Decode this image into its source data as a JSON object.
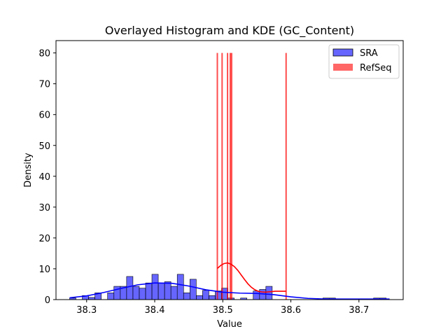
{
  "chart_data": {
    "type": "histogram",
    "title": "Overlayed Histogram and KDE (GC_Content)",
    "xlabel": "Value",
    "ylabel": "Density",
    "xlim": [
      38.255,
      38.765
    ],
    "ylim": [
      0,
      84
    ],
    "xticks": [
      38.3,
      38.4,
      38.5,
      38.6,
      38.7
    ],
    "yticks": [
      0,
      10,
      20,
      30,
      40,
      50,
      60,
      70,
      80
    ],
    "grid": false,
    "legend_position": "top-right",
    "colors": {
      "sra": "#0000ff",
      "refseq": "#ff0000"
    },
    "series": [
      {
        "name": "SRA",
        "bin_start": 38.275,
        "bin_width": 0.0093,
        "counts": [
          0.5,
          0,
          1.3,
          0.7,
          2.2,
          0,
          2.2,
          4.3,
          4.3,
          7.5,
          4.3,
          3.7,
          5.4,
          8.2,
          5.4,
          5.8,
          4.3,
          8.2,
          2.2,
          6.6,
          1.3,
          3.0,
          1.3,
          2.8,
          3.7,
          0.5,
          0,
          0.5,
          0,
          2.8,
          3.3,
          4.3,
          0,
          0,
          0,
          0,
          0,
          0,
          0,
          0,
          0.5,
          0.5,
          0,
          0,
          0,
          0,
          0,
          0,
          0.5,
          0.5
        ],
        "kde": {
          "x": [
            38.275,
            38.3,
            38.325,
            38.35,
            38.375,
            38.4,
            38.425,
            38.45,
            38.475,
            38.5,
            38.525,
            38.55,
            38.575,
            38.6,
            38.625,
            38.65,
            38.675,
            38.7,
            38.725,
            38.745
          ],
          "y": [
            0.6,
            1.2,
            2.3,
            3.6,
            4.8,
            5.4,
            5.3,
            4.4,
            3.2,
            2.4,
            2.1,
            2.0,
            1.6,
            0.9,
            0.4,
            0.2,
            0.2,
            0.2,
            0.2,
            0.2
          ]
        }
      },
      {
        "name": "RefSeq",
        "lines_x": [
          38.492,
          38.499,
          38.507,
          38.511,
          38.513,
          38.593
        ],
        "lines_top": 80,
        "kde": {
          "x": [
            38.492,
            38.497,
            38.502,
            38.507,
            38.512,
            38.517,
            38.522,
            38.527,
            38.532,
            38.537,
            38.542,
            38.547,
            38.552,
            38.557,
            38.562,
            38.567,
            38.572,
            38.577,
            38.582,
            38.587,
            38.593
          ],
          "y": [
            10.1,
            11.1,
            11.7,
            11.9,
            11.5,
            10.7,
            9.5,
            8.0,
            6.5,
            5.1,
            4.0,
            3.2,
            2.7,
            2.5,
            2.4,
            2.5,
            2.6,
            2.7,
            2.7,
            2.7,
            2.7
          ]
        }
      }
    ]
  }
}
